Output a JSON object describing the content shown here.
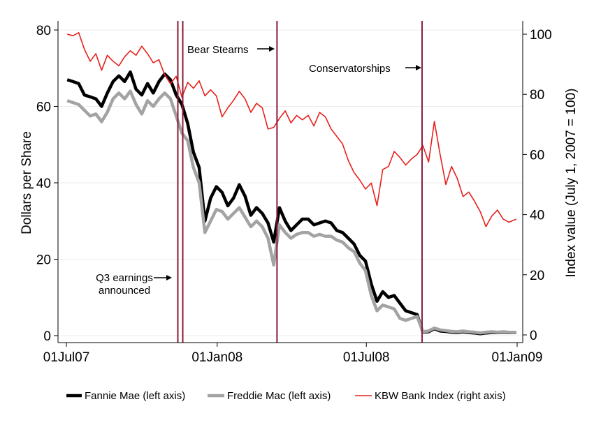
{
  "chart_data": {
    "type": "line",
    "title": "",
    "xlabel": "",
    "ylabel": "Dollars per Share",
    "y2label": "Index value  (July 1, 2007 = 100)",
    "xlim": [
      "2007-07-01",
      "2009-01-01"
    ],
    "ylim": [
      0,
      80
    ],
    "y2lim": [
      0,
      100
    ],
    "x_ticks": [
      {
        "date": "2007-07-01",
        "label": "01Jul07"
      },
      {
        "date": "2008-01-01",
        "label": "01Jan08"
      },
      {
        "date": "2008-07-01",
        "label": "01Jul08"
      },
      {
        "date": "2009-01-01",
        "label": "01Jan09"
      }
    ],
    "y_ticks": [
      0,
      20,
      40,
      60,
      80
    ],
    "y2_ticks": [
      0,
      20,
      40,
      60,
      80,
      100
    ],
    "grid": true,
    "legend_position": "bottom",
    "series": [
      {
        "name": "Fannie Mae (left axis)",
        "axis": "left",
        "color": "#000000",
        "points": [
          [
            "2007-07-02",
            67.0
          ],
          [
            "2007-07-09",
            66.5
          ],
          [
            "2007-07-16",
            66.0
          ],
          [
            "2007-07-23",
            63.0
          ],
          [
            "2007-07-30",
            62.5
          ],
          [
            "2007-08-06",
            62.0
          ],
          [
            "2007-08-13",
            60.0
          ],
          [
            "2007-08-20",
            63.5
          ],
          [
            "2007-08-27",
            66.5
          ],
          [
            "2007-09-03",
            68.0
          ],
          [
            "2007-09-10",
            66.5
          ],
          [
            "2007-09-17",
            69.0
          ],
          [
            "2007-09-24",
            64.5
          ],
          [
            "2007-10-01",
            63.0
          ],
          [
            "2007-10-08",
            66.0
          ],
          [
            "2007-10-15",
            63.5
          ],
          [
            "2007-10-22",
            66.5
          ],
          [
            "2007-10-29",
            68.5
          ],
          [
            "2007-11-05",
            67.0
          ],
          [
            "2007-11-12",
            63.0
          ],
          [
            "2007-11-19",
            60.5
          ],
          [
            "2007-11-26",
            55.5
          ],
          [
            "2007-12-03",
            48.0
          ],
          [
            "2007-12-10",
            44.0
          ],
          [
            "2007-12-17",
            30.0
          ],
          [
            "2007-12-24",
            36.0
          ],
          [
            "2007-12-31",
            39.0
          ],
          [
            "2008-01-07",
            37.5
          ],
          [
            "2008-01-14",
            34.0
          ],
          [
            "2008-01-21",
            36.0
          ],
          [
            "2008-01-28",
            39.5
          ],
          [
            "2008-02-04",
            36.5
          ],
          [
            "2008-02-11",
            31.5
          ],
          [
            "2008-02-18",
            33.5
          ],
          [
            "2008-02-25",
            32.0
          ],
          [
            "2008-03-03",
            29.5
          ],
          [
            "2008-03-10",
            24.5
          ],
          [
            "2008-03-17",
            33.5
          ],
          [
            "2008-03-24",
            30.0
          ],
          [
            "2008-03-31",
            27.5
          ],
          [
            "2008-04-07",
            29.0
          ],
          [
            "2008-04-14",
            30.5
          ],
          [
            "2008-04-21",
            30.5
          ],
          [
            "2008-04-28",
            29.0
          ],
          [
            "2008-05-05",
            29.5
          ],
          [
            "2008-05-12",
            30.0
          ],
          [
            "2008-05-19",
            29.5
          ],
          [
            "2008-05-26",
            27.5
          ],
          [
            "2008-06-02",
            27.0
          ],
          [
            "2008-06-09",
            25.5
          ],
          [
            "2008-06-16",
            24.0
          ],
          [
            "2008-06-23",
            21.0
          ],
          [
            "2008-06-30",
            19.5
          ],
          [
            "2008-07-07",
            13.5
          ],
          [
            "2008-07-14",
            9.0
          ],
          [
            "2008-07-21",
            11.5
          ],
          [
            "2008-07-28",
            10.0
          ],
          [
            "2008-08-04",
            10.5
          ],
          [
            "2008-08-11",
            8.5
          ],
          [
            "2008-08-18",
            6.5
          ],
          [
            "2008-08-25",
            6.0
          ],
          [
            "2008-09-01",
            5.5
          ],
          [
            "2008-09-08",
            0.9
          ],
          [
            "2008-09-15",
            1.0
          ],
          [
            "2008-09-22",
            1.8
          ],
          [
            "2008-09-29",
            1.2
          ],
          [
            "2008-10-06",
            1.1
          ],
          [
            "2008-10-13",
            0.9
          ],
          [
            "2008-10-20",
            0.8
          ],
          [
            "2008-10-27",
            1.0
          ],
          [
            "2008-11-03",
            0.8
          ],
          [
            "2008-11-10",
            0.7
          ],
          [
            "2008-11-17",
            0.5
          ],
          [
            "2008-11-24",
            0.7
          ],
          [
            "2008-12-01",
            0.8
          ],
          [
            "2008-12-08",
            0.8
          ],
          [
            "2008-12-15",
            0.9
          ],
          [
            "2008-12-22",
            0.8
          ],
          [
            "2008-12-31",
            0.8
          ]
        ]
      },
      {
        "name": "Freddie Mac (left axis)",
        "axis": "left",
        "color": "#a3a3a3",
        "points": [
          [
            "2007-07-02",
            61.5
          ],
          [
            "2007-07-09",
            61.0
          ],
          [
            "2007-07-16",
            60.5
          ],
          [
            "2007-07-23",
            59.0
          ],
          [
            "2007-07-30",
            57.5
          ],
          [
            "2007-08-06",
            58.0
          ],
          [
            "2007-08-13",
            56.0
          ],
          [
            "2007-08-20",
            58.5
          ],
          [
            "2007-08-27",
            62.0
          ],
          [
            "2007-09-03",
            63.5
          ],
          [
            "2007-09-10",
            62.0
          ],
          [
            "2007-09-17",
            64.0
          ],
          [
            "2007-09-24",
            60.5
          ],
          [
            "2007-10-01",
            58.0
          ],
          [
            "2007-10-08",
            61.5
          ],
          [
            "2007-10-15",
            60.0
          ],
          [
            "2007-10-22",
            62.0
          ],
          [
            "2007-10-29",
            63.5
          ],
          [
            "2007-11-05",
            62.0
          ],
          [
            "2007-11-12",
            57.5
          ],
          [
            "2007-11-19",
            53.0
          ],
          [
            "2007-11-26",
            51.0
          ],
          [
            "2007-12-03",
            44.0
          ],
          [
            "2007-12-10",
            40.0
          ],
          [
            "2007-12-17",
            27.0
          ],
          [
            "2007-12-24",
            30.0
          ],
          [
            "2007-12-31",
            33.0
          ],
          [
            "2008-01-07",
            32.5
          ],
          [
            "2008-01-14",
            30.5
          ],
          [
            "2008-01-21",
            32.0
          ],
          [
            "2008-01-28",
            33.5
          ],
          [
            "2008-02-04",
            31.0
          ],
          [
            "2008-02-11",
            28.5
          ],
          [
            "2008-02-18",
            30.0
          ],
          [
            "2008-02-25",
            28.5
          ],
          [
            "2008-03-03",
            25.5
          ],
          [
            "2008-03-10",
            18.5
          ],
          [
            "2008-03-17",
            29.0
          ],
          [
            "2008-03-24",
            27.0
          ],
          [
            "2008-03-31",
            25.5
          ],
          [
            "2008-04-07",
            26.5
          ],
          [
            "2008-04-14",
            27.0
          ],
          [
            "2008-04-21",
            27.0
          ],
          [
            "2008-04-28",
            26.0
          ],
          [
            "2008-05-05",
            26.5
          ],
          [
            "2008-05-12",
            26.0
          ],
          [
            "2008-05-19",
            26.0
          ],
          [
            "2008-05-26",
            25.0
          ],
          [
            "2008-06-02",
            24.5
          ],
          [
            "2008-06-09",
            23.0
          ],
          [
            "2008-06-16",
            22.0
          ],
          [
            "2008-06-23",
            19.0
          ],
          [
            "2008-06-30",
            17.0
          ],
          [
            "2008-07-07",
            10.5
          ],
          [
            "2008-07-14",
            6.5
          ],
          [
            "2008-07-21",
            8.0
          ],
          [
            "2008-07-28",
            7.5
          ],
          [
            "2008-08-04",
            7.0
          ],
          [
            "2008-08-11",
            4.5
          ],
          [
            "2008-08-18",
            4.0
          ],
          [
            "2008-08-25",
            4.5
          ],
          [
            "2008-09-01",
            5.0
          ],
          [
            "2008-09-08",
            1.0
          ],
          [
            "2008-09-15",
            1.2
          ],
          [
            "2008-09-22",
            2.0
          ],
          [
            "2008-09-29",
            1.5
          ],
          [
            "2008-10-06",
            1.3
          ],
          [
            "2008-10-13",
            1.1
          ],
          [
            "2008-10-20",
            1.0
          ],
          [
            "2008-10-27",
            1.2
          ],
          [
            "2008-11-03",
            1.0
          ],
          [
            "2008-11-10",
            0.9
          ],
          [
            "2008-11-17",
            0.7
          ],
          [
            "2008-11-24",
            0.9
          ],
          [
            "2008-12-01",
            1.0
          ],
          [
            "2008-12-08",
            0.9
          ],
          [
            "2008-12-15",
            1.0
          ],
          [
            "2008-12-22",
            0.9
          ],
          [
            "2008-12-31",
            0.8
          ]
        ]
      },
      {
        "name": "KBW Bank Index (right axis)",
        "axis": "right",
        "color": "#e8201b",
        "points": [
          [
            "2007-07-02",
            100.0
          ],
          [
            "2007-07-09",
            99.5
          ],
          [
            "2007-07-16",
            100.5
          ],
          [
            "2007-07-23",
            95.0
          ],
          [
            "2007-07-30",
            91.0
          ],
          [
            "2007-08-06",
            93.5
          ],
          [
            "2007-08-13",
            88.0
          ],
          [
            "2007-08-20",
            93.0
          ],
          [
            "2007-08-27",
            91.0
          ],
          [
            "2007-09-03",
            89.5
          ],
          [
            "2007-09-10",
            92.5
          ],
          [
            "2007-09-17",
            94.5
          ],
          [
            "2007-09-24",
            93.0
          ],
          [
            "2007-10-01",
            96.0
          ],
          [
            "2007-10-08",
            93.5
          ],
          [
            "2007-10-15",
            90.5
          ],
          [
            "2007-10-22",
            91.5
          ],
          [
            "2007-10-29",
            86.5
          ],
          [
            "2007-11-05",
            83.5
          ],
          [
            "2007-11-12",
            86.0
          ],
          [
            "2007-11-19",
            79.0
          ],
          [
            "2007-11-26",
            84.0
          ],
          [
            "2007-12-03",
            82.0
          ],
          [
            "2007-12-10",
            84.5
          ],
          [
            "2007-12-17",
            79.5
          ],
          [
            "2007-12-24",
            81.5
          ],
          [
            "2007-12-31",
            79.5
          ],
          [
            "2008-01-07",
            72.5
          ],
          [
            "2008-01-14",
            75.5
          ],
          [
            "2008-01-21",
            78.0
          ],
          [
            "2008-01-28",
            81.0
          ],
          [
            "2008-02-04",
            78.5
          ],
          [
            "2008-02-11",
            74.0
          ],
          [
            "2008-02-18",
            77.0
          ],
          [
            "2008-02-25",
            75.5
          ],
          [
            "2008-03-03",
            68.5
          ],
          [
            "2008-03-10",
            69.0
          ],
          [
            "2008-03-17",
            72.0
          ],
          [
            "2008-03-24",
            74.5
          ],
          [
            "2008-03-31",
            70.5
          ],
          [
            "2008-04-07",
            73.0
          ],
          [
            "2008-04-14",
            71.5
          ],
          [
            "2008-04-21",
            73.0
          ],
          [
            "2008-04-28",
            69.5
          ],
          [
            "2008-05-05",
            74.0
          ],
          [
            "2008-05-12",
            72.5
          ],
          [
            "2008-05-19",
            68.5
          ],
          [
            "2008-05-26",
            66.0
          ],
          [
            "2008-06-02",
            63.5
          ],
          [
            "2008-06-09",
            58.0
          ],
          [
            "2008-06-16",
            54.0
          ],
          [
            "2008-06-23",
            51.5
          ],
          [
            "2008-06-30",
            48.5
          ],
          [
            "2008-07-07",
            50.5
          ],
          [
            "2008-07-14",
            43.0
          ],
          [
            "2008-07-21",
            55.0
          ],
          [
            "2008-07-28",
            56.0
          ],
          [
            "2008-08-04",
            61.0
          ],
          [
            "2008-08-11",
            59.0
          ],
          [
            "2008-08-18",
            56.5
          ],
          [
            "2008-08-25",
            58.5
          ],
          [
            "2008-09-01",
            60.0
          ],
          [
            "2008-09-08",
            63.0
          ],
          [
            "2008-09-15",
            57.5
          ],
          [
            "2008-09-22",
            71.0
          ],
          [
            "2008-09-29",
            60.0
          ],
          [
            "2008-10-06",
            50.0
          ],
          [
            "2008-10-13",
            56.0
          ],
          [
            "2008-10-20",
            52.0
          ],
          [
            "2008-10-27",
            46.0
          ],
          [
            "2008-11-03",
            47.5
          ],
          [
            "2008-11-10",
            44.5
          ],
          [
            "2008-11-17",
            41.0
          ],
          [
            "2008-11-24",
            36.0
          ],
          [
            "2008-12-01",
            39.5
          ],
          [
            "2008-12-08",
            41.5
          ],
          [
            "2008-12-15",
            38.5
          ],
          [
            "2008-12-22",
            37.5
          ],
          [
            "2008-12-31",
            38.5
          ]
        ]
      }
    ],
    "events": [
      {
        "date": "2007-11-14"
      },
      {
        "date": "2007-11-20"
      },
      {
        "date": "2008-03-14"
      },
      {
        "date": "2008-09-07"
      }
    ],
    "annotations": [
      {
        "lines": [
          "Q3 earnings",
          "announced"
        ],
        "arrow": "right"
      },
      {
        "lines": [
          "Bear Stearns"
        ],
        "arrow": "right"
      },
      {
        "lines": [
          "Conservatorships"
        ],
        "arrow": "right"
      }
    ]
  },
  "colors": {
    "event_line": "#8b1a3a",
    "grid": "#ececec",
    "axis": "#000000"
  }
}
